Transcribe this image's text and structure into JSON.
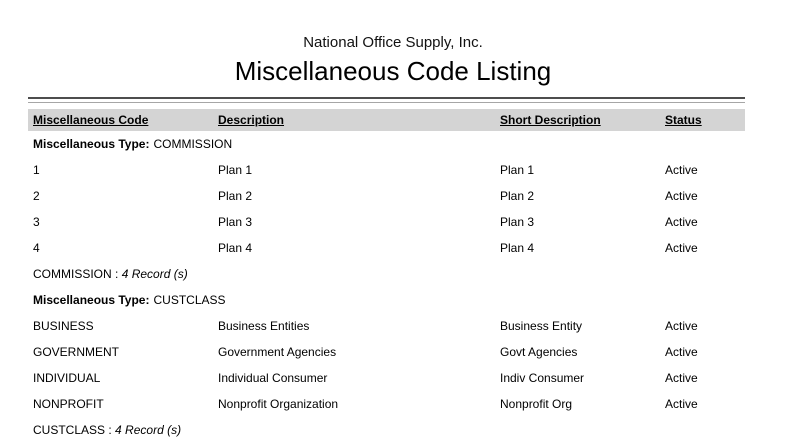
{
  "report": {
    "company": "National Office Supply, Inc.",
    "title": "Miscellaneous Code Listing",
    "columns": [
      "Miscellaneous Code",
      "Description",
      "Short Description",
      "Status"
    ],
    "groups": [
      {
        "type_label": "Miscellaneous Type:",
        "type_value": "COMMISSION",
        "rows": [
          {
            "code": "1",
            "description": "Plan 1",
            "short_description": "Plan 1",
            "status": "Active"
          },
          {
            "code": "2",
            "description": "Plan 2",
            "short_description": "Plan 2",
            "status": "Active"
          },
          {
            "code": "3",
            "description": "Plan 3",
            "short_description": "Plan 3",
            "status": "Active"
          },
          {
            "code": "4",
            "description": "Plan 4",
            "short_description": "Plan 4",
            "status": "Active"
          }
        ],
        "summary": {
          "name": "COMMISSION",
          "separator": " : ",
          "count": "4 Record (s)"
        }
      },
      {
        "type_label": "Miscellaneous Type:",
        "type_value": "CUSTCLASS",
        "rows": [
          {
            "code": "BUSINESS",
            "description": "Business Entities",
            "short_description": "Business Entity",
            "status": "Active"
          },
          {
            "code": "GOVERNMENT",
            "description": "Government Agencies",
            "short_description": "Govt Agencies",
            "status": "Active"
          },
          {
            "code": "INDIVIDUAL",
            "description": "Individual Consumer",
            "short_description": "Indiv Consumer",
            "status": "Active"
          },
          {
            "code": "NONPROFIT",
            "description": "Nonprofit Organization",
            "short_description": "Nonprofit Org",
            "status": "Active"
          }
        ],
        "summary": {
          "name": "CUSTCLASS",
          "separator": " : ",
          "count": "4 Record (s)"
        }
      }
    ],
    "colors": {
      "header_band": "#d4d4d4",
      "rule_dark": "#4d4d4d",
      "rule_light": "#a6a6a6"
    }
  }
}
